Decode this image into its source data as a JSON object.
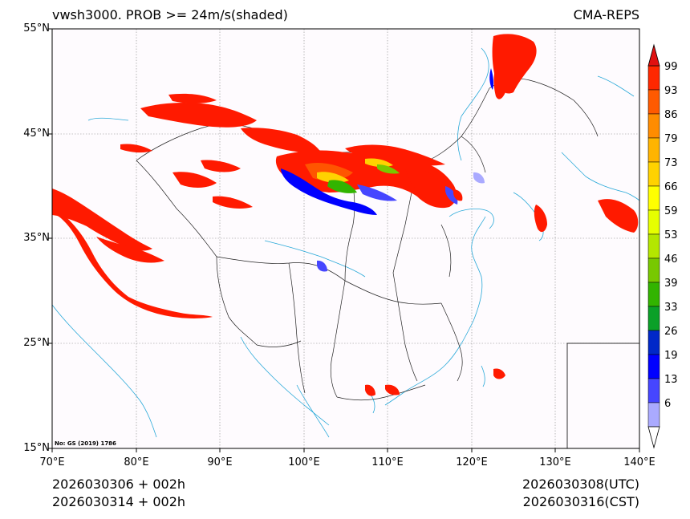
{
  "header": {
    "title": "vwsh3000. PROB >= 24m/s(shaded)",
    "source": "CMA-REPS"
  },
  "axes": {
    "lat_labels": [
      "55°N",
      "45°N",
      "35°N",
      "25°N",
      "15°N"
    ],
    "lon_labels": [
      "70°E",
      "80°E",
      "90°E",
      "100°E",
      "110°E",
      "120°E",
      "130°E",
      "140°E"
    ],
    "lat_range": [
      15,
      55
    ],
    "lon_range": [
      70,
      140
    ]
  },
  "colorbar": {
    "levels": [
      "99",
      "93",
      "86",
      "79",
      "73",
      "66",
      "59",
      "53",
      "46",
      "39",
      "33",
      "26",
      "19",
      "13",
      "6"
    ],
    "colors": [
      "#ff2800",
      "#ff5a00",
      "#ff8c00",
      "#ffb400",
      "#ffd200",
      "#ffff00",
      "#e6ff00",
      "#b4e600",
      "#78c800",
      "#32b400",
      "#0aa028",
      "#0028c8",
      "#0000ff",
      "#4646ff",
      "#aaaaff"
    ]
  },
  "note": "No: GS (2019) 1786",
  "footer": {
    "init_utc": "2026030306  +  002h",
    "init_cst": "2026030314  +  002h",
    "valid_utc": "2026030308(UTC)",
    "valid_cst": "2026030316(CST)"
  }
}
